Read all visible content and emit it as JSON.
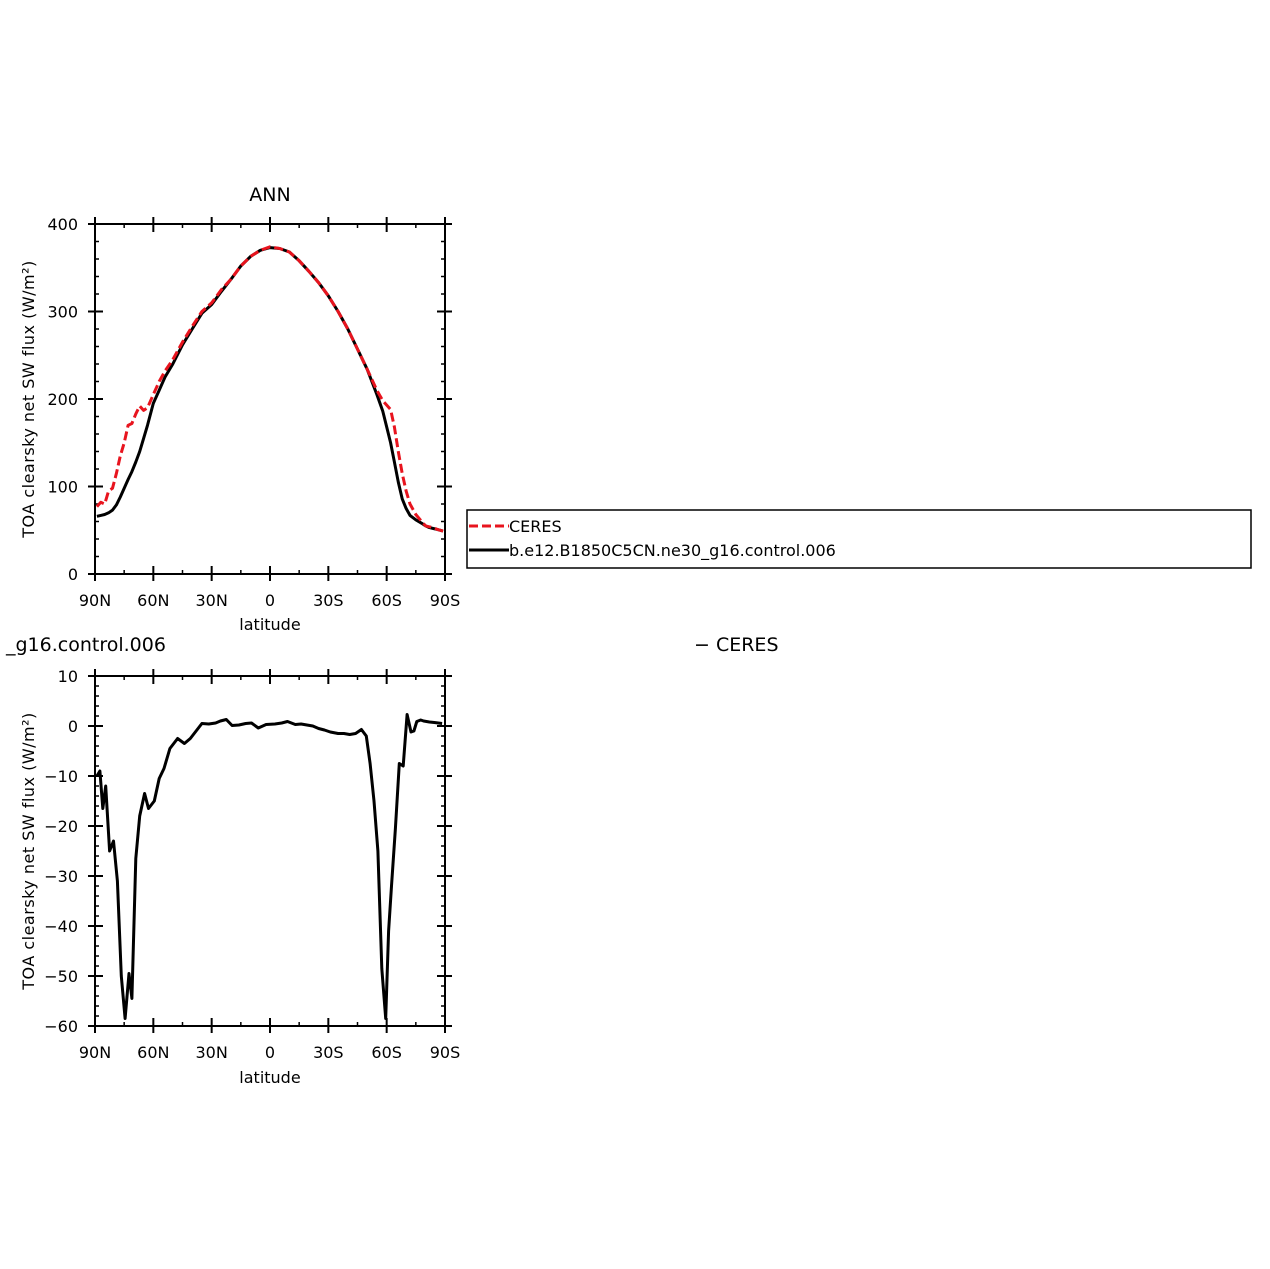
{
  "colors": {
    "model": "#000000",
    "ceres": "#e8141e",
    "frame": "#000000"
  },
  "top_panel": {
    "title": "ANN"
  },
  "bottom_panel": {
    "title_left": "_g16.control.006",
    "title_right": "− CERES"
  },
  "legend": {
    "entries": [
      {
        "label": "CERES",
        "style": "dashed",
        "color": "#e8141e"
      },
      {
        "label": "b.e12.B1850C5CN.ne30_g16.control.006",
        "style": "solid",
        "color": "#000000"
      }
    ]
  },
  "chart_data": [
    {
      "type": "line",
      "title": "ANN",
      "xlabel": "latitude",
      "ylabel": "TOA clearsky net SW flux (W/m²)",
      "xlim": [
        90,
        -90
      ],
      "ylim": [
        0,
        400
      ],
      "x_tick_values": [
        90,
        60,
        30,
        0,
        -30,
        -60,
        -90
      ],
      "x_tick_labels": [
        "90N",
        "60N",
        "30N",
        "0",
        "30S",
        "60S",
        "90S"
      ],
      "y_tick_values": [
        0,
        100,
        200,
        300,
        400
      ],
      "y_tick_labels": [
        "0",
        "100",
        "200",
        "300",
        "400"
      ],
      "legend_position": "right",
      "series": [
        {
          "name": "CERES",
          "style": "dashed",
          "color": "#e8141e",
          "x": [
            89,
            87,
            85,
            83,
            81,
            79,
            77,
            75,
            73,
            71,
            69,
            67,
            65,
            63,
            60,
            57,
            54,
            50,
            45,
            40,
            35,
            30,
            25,
            20,
            15,
            10,
            5,
            0,
            -5,
            -10,
            -15,
            -20,
            -25,
            -30,
            -35,
            -40,
            -45,
            -50,
            -55,
            -58,
            -60,
            -62,
            -64,
            -66,
            -68,
            -70,
            -72,
            -75,
            -78,
            -80,
            -82,
            -84,
            -86,
            -89
          ],
          "y": [
            77,
            82,
            80,
            95,
            98,
            115,
            135,
            150,
            170,
            172,
            183,
            192,
            187,
            190,
            205,
            220,
            232,
            245,
            265,
            283,
            300,
            310,
            325,
            337,
            352,
            363,
            370,
            374,
            372,
            368,
            358,
            346,
            333,
            318,
            300,
            280,
            257,
            234,
            210,
            198,
            193,
            188,
            168,
            140,
            115,
            95,
            80,
            68,
            60,
            55,
            54,
            53,
            51,
            49
          ]
        },
        {
          "name": "b.e12.B1850C5CN.ne30_g16.control.006",
          "style": "solid",
          "color": "#000000",
          "x": [
            89,
            87,
            85,
            83,
            81,
            79,
            77,
            75,
            73,
            71,
            69,
            67,
            65,
            63,
            60,
            57,
            54,
            50,
            45,
            40,
            35,
            30,
            25,
            20,
            15,
            10,
            5,
            0,
            -5,
            -10,
            -15,
            -20,
            -25,
            -30,
            -35,
            -40,
            -45,
            -50,
            -55,
            -58,
            -60,
            -62,
            -64,
            -66,
            -68,
            -70,
            -72,
            -75,
            -78,
            -80,
            -82,
            -84,
            -86,
            -89
          ],
          "y": [
            66,
            67,
            68,
            70,
            73,
            79,
            88,
            98,
            108,
            117,
            128,
            140,
            155,
            170,
            195,
            210,
            225,
            240,
            262,
            280,
            298,
            308,
            323,
            337,
            352,
            363,
            370,
            373,
            372,
            368,
            358,
            346,
            333,
            318,
            300,
            280,
            257,
            234,
            205,
            186,
            168,
            150,
            128,
            105,
            86,
            75,
            67,
            62,
            58,
            55,
            53,
            52,
            51,
            49
          ]
        }
      ]
    },
    {
      "type": "line",
      "title": "_g16.control.006 − CERES",
      "xlabel": "latitude",
      "ylabel": "TOA clearsky net SW flux (W/m²)",
      "xlim": [
        90,
        -90
      ],
      "ylim": [
        -60,
        10
      ],
      "x_tick_values": [
        90,
        60,
        30,
        0,
        -30,
        -60,
        -90
      ],
      "x_tick_labels": [
        "90N",
        "60N",
        "30N",
        "0",
        "30S",
        "60S",
        "90S"
      ],
      "y_tick_values": [
        -60,
        -50,
        -40,
        -30,
        -20,
        -10,
        0,
        10
      ],
      "y_tick_labels": [
        "−60",
        "−50",
        "−40",
        "−30",
        "−20",
        "−10",
        "0",
        "10"
      ],
      "series": [
        {
          "style": "solid",
          "color": "#000000",
          "x": [
            89,
            87.5,
            86,
            84.5,
            82.5,
            80.5,
            78.5,
            76.5,
            74.5,
            72.5,
            71,
            69,
            67,
            64.5,
            62.5,
            59.5,
            57,
            54.5,
            51.5,
            47.5,
            44,
            41,
            38,
            35,
            31.5,
            28,
            25.5,
            22.5,
            19.5,
            16,
            12.5,
            9.5,
            6,
            2,
            -2.5,
            -6,
            -9,
            -13,
            -16,
            -19,
            -22,
            -25,
            -28,
            -31,
            -35,
            -38,
            -41,
            -44,
            -47,
            -49.5,
            -51.5,
            -53.5,
            -55.5,
            -57.5,
            -59.5,
            -61,
            -62.5,
            -64.5,
            -66.5,
            -68.5,
            -70.5,
            -72.5,
            -74,
            -75.5,
            -77.5,
            -79,
            -80.5,
            -82,
            -84.5,
            -86.5,
            -88.5
          ],
          "y": [
            -10,
            -9,
            -16.5,
            -12,
            -25,
            -23,
            -31,
            -50,
            -58.5,
            -49.5,
            -54.5,
            -26.5,
            -18,
            -13.5,
            -16.5,
            -15,
            -10.5,
            -8.5,
            -4.5,
            -2.5,
            -3.5,
            -2.5,
            -1,
            0.5,
            0.4,
            0.6,
            1,
            1.3,
            0.1,
            0.2,
            0.5,
            0.6,
            -0.4,
            0.3,
            0.4,
            0.6,
            0.9,
            0.3,
            0.4,
            0.2,
            0,
            -0.5,
            -0.8,
            -1.2,
            -1.5,
            -1.5,
            -1.7,
            -1.5,
            -0.7,
            -2,
            -7.5,
            -15,
            -25,
            -48.5,
            -58.5,
            -41,
            -32,
            -20.5,
            -7.5,
            -8,
            2.3,
            -1.2,
            -1,
            0.9,
            1.2,
            1,
            0.9,
            0.8,
            0.7,
            0.6,
            0.5
          ]
        }
      ]
    }
  ]
}
